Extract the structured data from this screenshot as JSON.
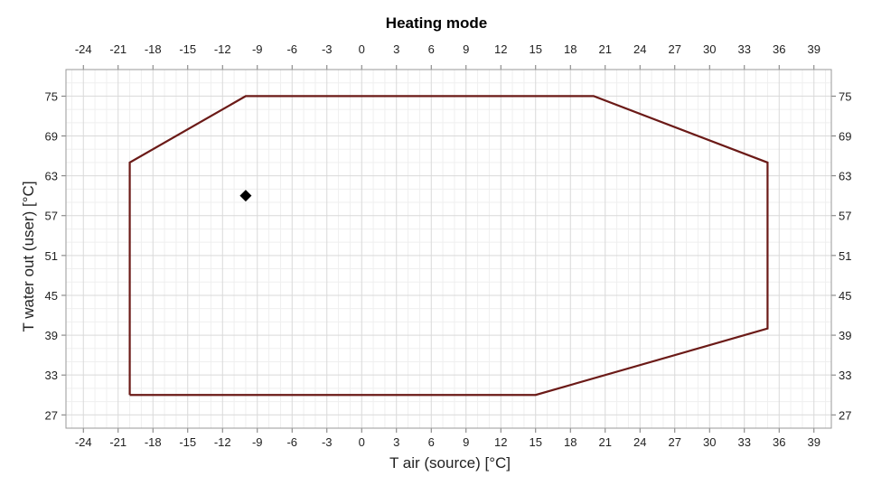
{
  "chart_data": {
    "type": "scatter",
    "title": "Heating mode",
    "xlabel": "T air (source) [°C]",
    "ylabel": "T water out (user) [°C]",
    "xlim": [
      -25.5,
      40.5
    ],
    "ylim": [
      25,
      79
    ],
    "x_ticks": [
      -24,
      -21,
      -18,
      -15,
      -12,
      -9,
      -6,
      -3,
      0,
      3,
      6,
      9,
      12,
      15,
      18,
      21,
      24,
      27,
      30,
      33,
      36,
      39
    ],
    "y_ticks": [
      27,
      33,
      39,
      45,
      51,
      57,
      63,
      69,
      75
    ],
    "grid": true,
    "envelope": {
      "color": "#6b1a17",
      "points": [
        [
          -20,
          30
        ],
        [
          -20,
          65
        ],
        [
          -10,
          75
        ],
        [
          20,
          75
        ],
        [
          35,
          65
        ],
        [
          35,
          40
        ],
        [
          15,
          30
        ],
        [
          -20,
          30
        ]
      ]
    },
    "points": [
      {
        "x": -10,
        "y": 60,
        "marker": "diamond",
        "color": "#000000"
      }
    ]
  }
}
